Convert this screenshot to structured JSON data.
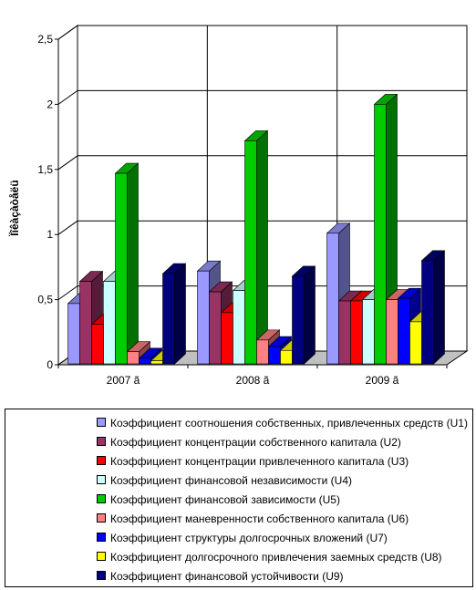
{
  "chart_data": {
    "type": "bar",
    "style": "3d-clustered",
    "title": "",
    "xlabel": "",
    "ylabel": "Ïîêàçàòåëü",
    "ylim": [
      0,
      2.5
    ],
    "yticks": [
      "0",
      "0,5",
      "1",
      "1,5",
      "2",
      "2,5"
    ],
    "ytick_values": [
      0,
      0.5,
      1,
      1.5,
      2,
      2.5
    ],
    "grid": true,
    "legend_placement": "bottom",
    "categories": [
      "2007 ã",
      "2008 ã",
      "2009 ã"
    ],
    "series": [
      {
        "name": "Коэффициент соотношения собственных, привлеченных средств (U1)",
        "color": "#9999ff",
        "values": [
          0.47,
          0.72,
          1.01
        ]
      },
      {
        "name": "Коэффициент концентрации собственного капитала (U2)",
        "color": "#993366",
        "values": [
          0.64,
          0.56,
          0.49
        ]
      },
      {
        "name": "Коэффициент концентрации привлеченного капитала (U3)",
        "color": "#ff0000",
        "values": [
          0.31,
          0.4,
          0.49
        ]
      },
      {
        "name": "Коэффициент финансовой независимости (U4)",
        "color": "#ccffff",
        "values": [
          0.64,
          0.57,
          0.5
        ]
      },
      {
        "name": "Коэффициент финансовой зависимости (U5)",
        "color": "#00cc00",
        "values": [
          1.47,
          1.72,
          2.0
        ]
      },
      {
        "name": "Коэффициент маневренности собственного капитала (U6)",
        "color": "#ff8080",
        "values": [
          0.1,
          0.19,
          0.5
        ]
      },
      {
        "name": "Коэффициент структуры долгосрочных вложений (U7)",
        "color": "#0000ff",
        "values": [
          0.05,
          0.14,
          0.51
        ]
      },
      {
        "name": "Коэффициент долгосрочного привлечения заемных средств (U8)",
        "color": "#ffff00",
        "values": [
          0.03,
          0.11,
          0.33
        ]
      },
      {
        "name": "Коэффициент финансовой устойчивости (U9)",
        "color": "#000080",
        "values": [
          0.7,
          0.68,
          0.8
        ]
      }
    ]
  }
}
